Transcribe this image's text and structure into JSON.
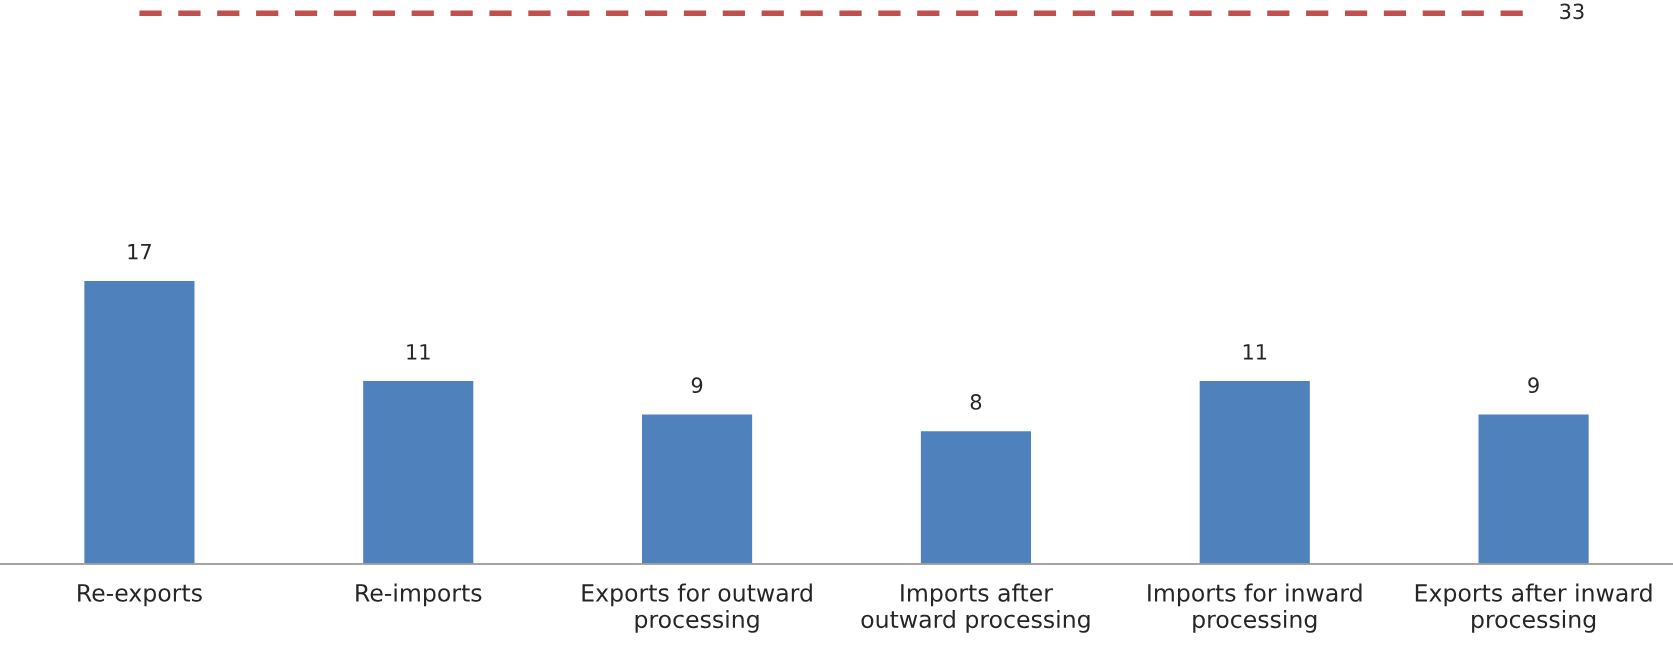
{
  "chart_data": {
    "type": "bar",
    "categories": [
      "Re-exports",
      "Re-imports",
      "Exports for outward processing",
      "Imports after outward processing",
      "Imports for inward processing",
      "Exports after inward processing"
    ],
    "values": [
      17,
      11,
      9,
      8,
      11,
      9
    ],
    "color": "#4f81bd",
    "data_labels": true,
    "grid": false,
    "legend": false,
    "ref_lines": [
      {
        "axis": "y",
        "value": 33,
        "label": "33",
        "color": "#c0504d",
        "line_style": "dashed"
      }
    ]
  }
}
